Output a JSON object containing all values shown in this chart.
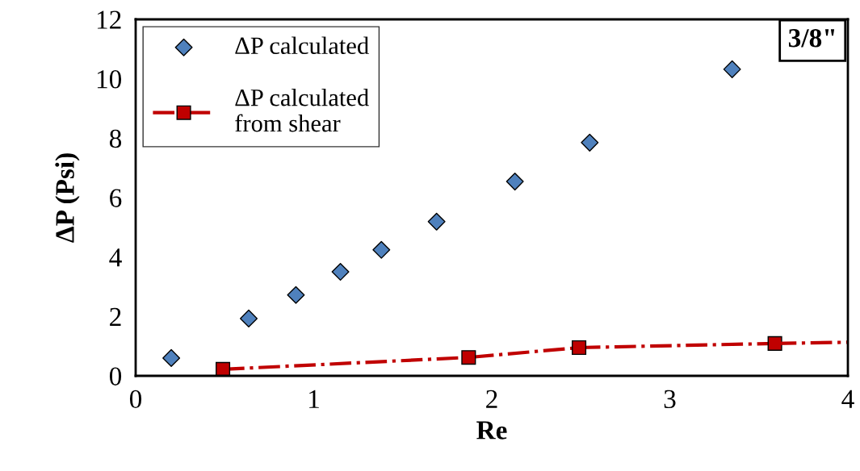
{
  "chart_data": {
    "type": "scatter",
    "xlabel": "Re",
    "ylabel": "ΔP (Psi)",
    "xlim": [
      0,
      4
    ],
    "ylim": [
      0,
      12
    ],
    "xticks": [
      0,
      1,
      2,
      3,
      4
    ],
    "yticks": [
      0,
      2,
      4,
      6,
      8,
      10,
      12
    ],
    "grid": false,
    "legend": "top left",
    "annotations": [
      "3/8\""
    ],
    "series": [
      {
        "name": "ΔP calculated",
        "marker": "diamond",
        "color": "#4f81bd",
        "x": [
          0.2,
          0.635,
          0.9,
          1.15,
          1.38,
          1.69,
          2.13,
          2.55,
          3.35
        ],
        "values": [
          0.6,
          1.93,
          2.72,
          3.5,
          4.24,
          5.19,
          6.54,
          7.85,
          10.32
        ]
      },
      {
        "name": "ΔP calculated\nfrom shear",
        "type": "line",
        "marker": "square",
        "line_style": "dashdot",
        "color": "#c00000",
        "x": [
          0.49,
          1.87,
          2.49,
          3.59
        ],
        "values": [
          0.22,
          0.62,
          0.95,
          1.09
        ]
      },
      {
        "type": "line",
        "marker": "none",
        "line_style": "dashdot",
        "color": "#c00000",
        "x": [
          3.59,
          4
        ],
        "values": [
          1.09,
          1.13
        ]
      }
    ]
  }
}
